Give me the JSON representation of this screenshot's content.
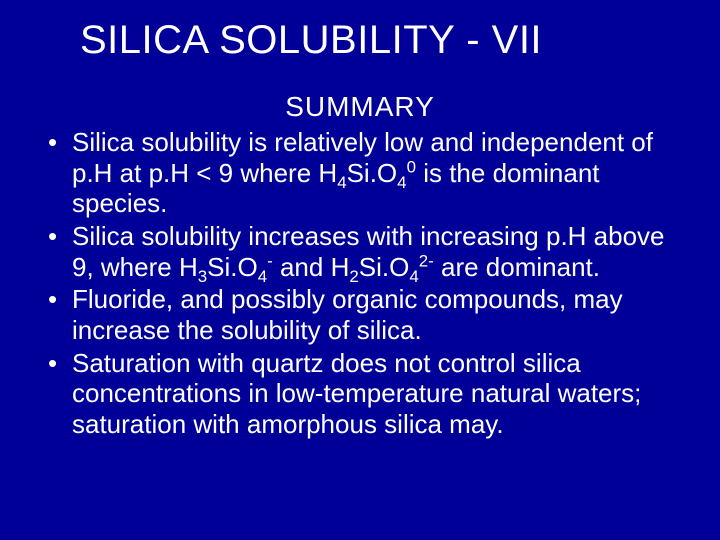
{
  "colors": {
    "background": "#000099",
    "text": "#ffffff"
  },
  "title": "SILICA SOLUBILITY - VII",
  "subtitle": "SUMMARY",
  "bullets": [
    {
      "pre": "Silica solubility is relatively low and independent of p.H at p.H < 9 where H",
      "formula_sub1": "4",
      "mid1": "Si.O",
      "formula_sub2": "4",
      "formula_sup1": "0",
      "post": " is the dominant species."
    },
    {
      "pre": "Silica solubility increases with increasing p.H above 9, where H",
      "formula_sub1": "3",
      "mid1": "Si.O",
      "formula_sub2": "4",
      "formula_sup1": "-",
      "mid2": "  and H",
      "formula_sub3": "2",
      "mid3": "Si.O",
      "formula_sub4": "4",
      "formula_sup2": "2-",
      "post": " are dominant."
    },
    {
      "text": "Fluoride, and possibly organic compounds, may increase the solubility of silica."
    },
    {
      "text": "Saturation with quartz does not control silica concentrations in low-temperature natural waters; saturation with amorphous silica may."
    }
  ]
}
